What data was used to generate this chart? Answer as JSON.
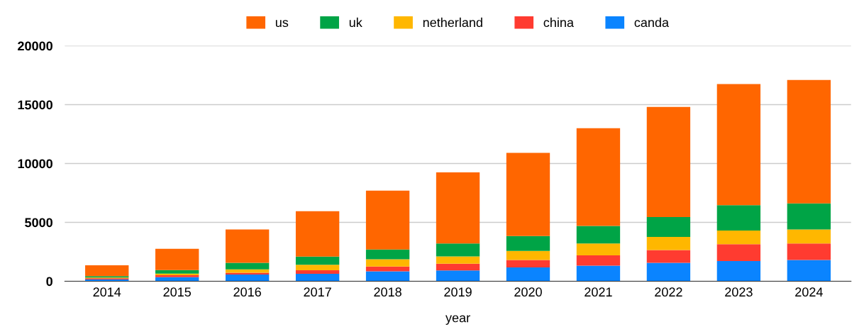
{
  "chart_data": {
    "type": "bar",
    "stacked": true,
    "xlabel": "year",
    "categories": [
      "2014",
      "2015",
      "2016",
      "2017",
      "2018",
      "2019",
      "2020",
      "2021",
      "2022",
      "2023",
      "2024"
    ],
    "series": [
      {
        "name": "canda",
        "color": "#0a84ff",
        "values": [
          150,
          350,
          570,
          630,
          840,
          920,
          1170,
          1330,
          1560,
          1720,
          1810
        ]
      },
      {
        "name": "china",
        "color": "#ff3b30",
        "values": [
          100,
          160,
          150,
          300,
          410,
          570,
          640,
          870,
          1090,
          1430,
          1400
        ]
      },
      {
        "name": "netherland",
        "color": "#ffb700",
        "values": [
          60,
          130,
          290,
          470,
          620,
          610,
          770,
          1010,
          1120,
          1160,
          1190
        ]
      },
      {
        "name": "uk",
        "color": "#00a446",
        "values": [
          130,
          300,
          550,
          690,
          820,
          1100,
          1260,
          1490,
          1680,
          2150,
          2210
        ]
      },
      {
        "name": "us",
        "color": "#ff6600",
        "values": [
          910,
          1810,
          2840,
          3860,
          5010,
          6050,
          7060,
          8300,
          9350,
          10290,
          10490
        ]
      }
    ],
    "ylim": [
      0,
      20000
    ],
    "yticks": [
      0,
      5000,
      10000,
      15000,
      20000
    ],
    "grid": "y",
    "legend": "top"
  }
}
